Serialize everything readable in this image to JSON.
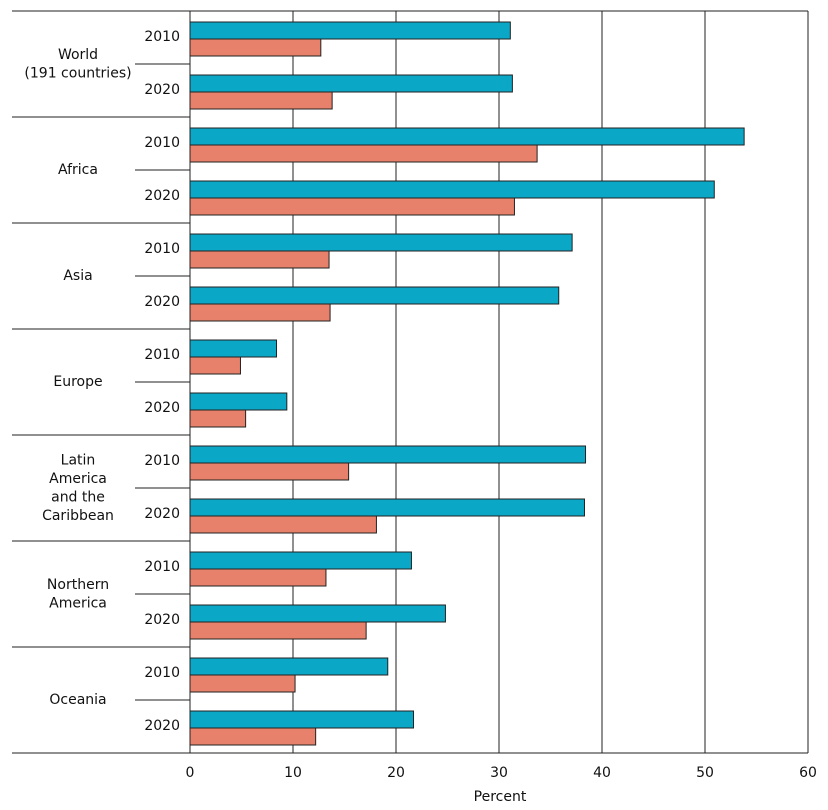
{
  "chart_data": {
    "type": "bar",
    "orientation": "horizontal",
    "groups": [
      {
        "label": [
          "World",
          "(191 countries)"
        ]
      },
      {
        "label": [
          "Africa"
        ]
      },
      {
        "label": [
          "Asia"
        ]
      },
      {
        "label": [
          "Europe"
        ]
      },
      {
        "label": [
          "Latin",
          "America",
          "and the",
          "Caribbean"
        ]
      },
      {
        "label": [
          "Northern",
          "America"
        ]
      },
      {
        "label": [
          "Oceania"
        ]
      }
    ],
    "categories": [
      "2010",
      "2020",
      "2010",
      "2020",
      "2010",
      "2020",
      "2010",
      "2020",
      "2010",
      "2020",
      "2010",
      "2020",
      "2010",
      "2020"
    ],
    "series": [
      {
        "color": "#0aa7c6",
        "values": [
          31.1,
          31.3,
          53.8,
          50.9,
          37.1,
          35.8,
          8.4,
          9.4,
          38.4,
          38.3,
          21.5,
          24.8,
          19.2,
          21.7
        ]
      },
      {
        "color": "#e8816b",
        "values": [
          12.7,
          13.8,
          33.7,
          31.5,
          13.5,
          13.6,
          4.9,
          5.4,
          15.4,
          18.1,
          13.2,
          17.1,
          10.2,
          12.2
        ]
      }
    ],
    "xlabel": "Percent",
    "xlim": [
      0,
      60
    ],
    "xticks": [
      0,
      10,
      20,
      30,
      40,
      50,
      60
    ],
    "grid": true
  }
}
